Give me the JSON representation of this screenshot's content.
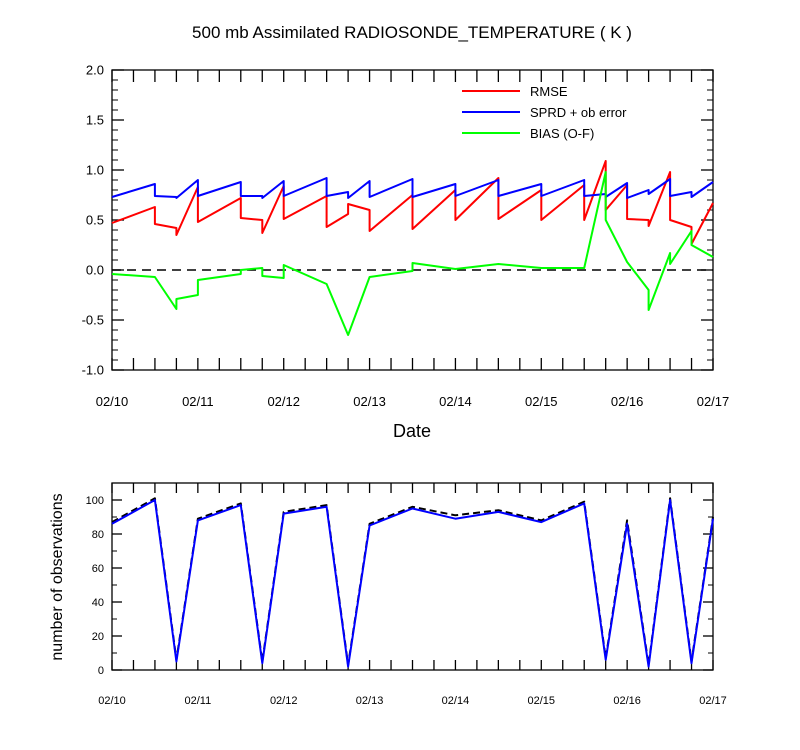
{
  "top_chart": {
    "title": "500 mb Assimilated RADIOSONDE_TEMPERATURE ( K )",
    "xlabel": "Date",
    "legend": [
      "RMSE",
      "SPRD + ob error",
      "BIAS (O-F)"
    ]
  },
  "bottom_chart": {
    "ylabel": "number of observations"
  },
  "colors": {
    "rmse": "#ff0000",
    "sprd": "#0000ff",
    "bias": "#00ff00",
    "dashed": "#000000",
    "obs_solid": "#0000ff"
  },
  "chart_data": [
    {
      "type": "line",
      "title": "500 mb Assimilated RADIOSONDE_TEMPERATURE ( K )",
      "xlabel": "Date",
      "ylabel": "",
      "x_unit": "days since 02/10 00Z",
      "xlim": [
        0,
        7
      ],
      "ylim": [
        -1.0,
        2.0
      ],
      "x_ticks": [
        "02/10",
        "02/11",
        "02/12",
        "02/13",
        "02/14",
        "02/15",
        "02/16",
        "02/17"
      ],
      "y_ticks": [
        "-1.0",
        "-0.5",
        "0.0",
        "0.5",
        "1.0",
        "1.5",
        "2.0"
      ],
      "legend_position": "top-right",
      "reference_line": 0.0,
      "series": [
        {
          "name": "RMSE",
          "color": "#ff0000",
          "points": [
            [
              0,
              0.47
            ],
            [
              0.5,
              0.63
            ],
            [
              0.5,
              0.46
            ],
            [
              0.75,
              0.42
            ],
            [
              0.75,
              0.35
            ],
            [
              1.0,
              0.83
            ],
            [
              1.0,
              0.48
            ],
            [
              1.5,
              0.72
            ],
            [
              1.5,
              0.52
            ],
            [
              1.75,
              0.5
            ],
            [
              1.75,
              0.37
            ],
            [
              2.0,
              0.84
            ],
            [
              2.0,
              0.51
            ],
            [
              2.5,
              0.74
            ],
            [
              2.5,
              0.43
            ],
            [
              2.75,
              0.56
            ],
            [
              2.75,
              0.66
            ],
            [
              3.0,
              0.6
            ],
            [
              3.0,
              0.39
            ],
            [
              3.5,
              0.75
            ],
            [
              3.5,
              0.41
            ],
            [
              4.0,
              0.8
            ],
            [
              4.0,
              0.5
            ],
            [
              4.5,
              0.92
            ],
            [
              4.5,
              0.51
            ],
            [
              5.0,
              0.8
            ],
            [
              5.0,
              0.5
            ],
            [
              5.5,
              0.85
            ],
            [
              5.5,
              0.5
            ],
            [
              5.75,
              1.09
            ],
            [
              5.75,
              0.6
            ],
            [
              6.0,
              0.85
            ],
            [
              6.0,
              0.51
            ],
            [
              6.25,
              0.5
            ],
            [
              6.25,
              0.44
            ],
            [
              6.5,
              0.98
            ],
            [
              6.5,
              0.5
            ],
            [
              6.75,
              0.43
            ],
            [
              6.75,
              0.26
            ],
            [
              7.0,
              0.67
            ]
          ]
        },
        {
          "name": "SPRD + ob error",
          "color": "#0000ff",
          "points": [
            [
              0,
              0.73
            ],
            [
              0.5,
              0.86
            ],
            [
              0.5,
              0.74
            ],
            [
              0.75,
              0.73
            ],
            [
              0.75,
              0.72
            ],
            [
              1.0,
              0.9
            ],
            [
              1.0,
              0.74
            ],
            [
              1.5,
              0.88
            ],
            [
              1.5,
              0.74
            ],
            [
              1.75,
              0.74
            ],
            [
              1.75,
              0.72
            ],
            [
              2.0,
              0.89
            ],
            [
              2.0,
              0.74
            ],
            [
              2.5,
              0.92
            ],
            [
              2.5,
              0.74
            ],
            [
              2.75,
              0.78
            ],
            [
              2.75,
              0.72
            ],
            [
              3.0,
              0.89
            ],
            [
              3.0,
              0.73
            ],
            [
              3.5,
              0.91
            ],
            [
              3.5,
              0.73
            ],
            [
              4.0,
              0.86
            ],
            [
              4.0,
              0.74
            ],
            [
              4.5,
              0.9
            ],
            [
              4.5,
              0.74
            ],
            [
              5.0,
              0.86
            ],
            [
              5.0,
              0.74
            ],
            [
              5.5,
              0.9
            ],
            [
              5.5,
              0.74
            ],
            [
              5.75,
              0.76
            ],
            [
              5.75,
              0.73
            ],
            [
              6.0,
              0.87
            ],
            [
              6.0,
              0.72
            ],
            [
              6.25,
              0.8
            ],
            [
              6.25,
              0.76
            ],
            [
              6.5,
              0.91
            ],
            [
              6.5,
              0.74
            ],
            [
              6.75,
              0.78
            ],
            [
              6.75,
              0.73
            ],
            [
              7.0,
              0.88
            ]
          ]
        },
        {
          "name": "BIAS (O-F)",
          "color": "#00ff00",
          "points": [
            [
              0,
              -0.04
            ],
            [
              0.5,
              -0.07
            ],
            [
              0.75,
              -0.39
            ],
            [
              0.75,
              -0.29
            ],
            [
              1.0,
              -0.25
            ],
            [
              1.0,
              -0.1
            ],
            [
              1.5,
              -0.04
            ],
            [
              1.5,
              0.0
            ],
            [
              1.75,
              0.02
            ],
            [
              1.75,
              -0.06
            ],
            [
              2.0,
              -0.08
            ],
            [
              2.0,
              0.05
            ],
            [
              2.5,
              -0.14
            ],
            [
              2.75,
              -0.65
            ],
            [
              3.0,
              -0.07
            ],
            [
              3.5,
              -0.01
            ],
            [
              3.5,
              0.07
            ],
            [
              4.0,
              0.01
            ],
            [
              4.5,
              0.06
            ],
            [
              5.0,
              0.02
            ],
            [
              5.5,
              0.02
            ],
            [
              5.75,
              0.98
            ],
            [
              5.75,
              0.5
            ],
            [
              6.0,
              0.08
            ],
            [
              6.25,
              -0.2
            ],
            [
              6.25,
              -0.4
            ],
            [
              6.5,
              0.17
            ],
            [
              6.5,
              0.06
            ],
            [
              6.75,
              0.39
            ],
            [
              6.75,
              0.25
            ],
            [
              7.0,
              0.13
            ]
          ]
        }
      ]
    },
    {
      "type": "line",
      "title": "",
      "xlabel": "",
      "ylabel": "number of observations",
      "x_unit": "days since 02/10 00Z",
      "xlim": [
        0,
        7
      ],
      "ylim": [
        0,
        110
      ],
      "x_ticks": [
        "02/10",
        "02/11",
        "02/12",
        "02/13",
        "02/14",
        "02/15",
        "02/16",
        "02/17"
      ],
      "y_ticks": [
        "0",
        "20",
        "40",
        "60",
        "80",
        "100"
      ],
      "series": [
        {
          "name": "",
          "style": "dashed",
          "color": "#000000",
          "points": [
            [
              0,
              87
            ],
            [
              0.5,
              101
            ],
            [
              0.75,
              6
            ],
            [
              1.0,
              89
            ],
            [
              1.5,
              98
            ],
            [
              1.75,
              5
            ],
            [
              2.0,
              93
            ],
            [
              2.5,
              97
            ],
            [
              2.75,
              3
            ],
            [
              3.0,
              86
            ],
            [
              3.5,
              96
            ],
            [
              4.0,
              91
            ],
            [
              4.5,
              94
            ],
            [
              5.0,
              88
            ],
            [
              5.5,
              99
            ],
            [
              5.75,
              7
            ],
            [
              6.0,
              88
            ],
            [
              6.25,
              3
            ],
            [
              6.5,
              101
            ],
            [
              6.75,
              5
            ],
            [
              7.0,
              90
            ]
          ]
        },
        {
          "name": "",
          "style": "solid",
          "color": "#0000ff",
          "points": [
            [
              0,
              86
            ],
            [
              0.5,
              100
            ],
            [
              0.75,
              5
            ],
            [
              1.0,
              88
            ],
            [
              1.5,
              97
            ],
            [
              1.75,
              4
            ],
            [
              2.0,
              92
            ],
            [
              2.5,
              96
            ],
            [
              2.75,
              2
            ],
            [
              3.0,
              85
            ],
            [
              3.5,
              95
            ],
            [
              4.0,
              89
            ],
            [
              4.5,
              93
            ],
            [
              5.0,
              87
            ],
            [
              5.5,
              98
            ],
            [
              5.75,
              6
            ],
            [
              6.0,
              86
            ],
            [
              6.25,
              2
            ],
            [
              6.5,
              100
            ],
            [
              6.75,
              4
            ],
            [
              7.0,
              89
            ]
          ]
        }
      ]
    }
  ]
}
